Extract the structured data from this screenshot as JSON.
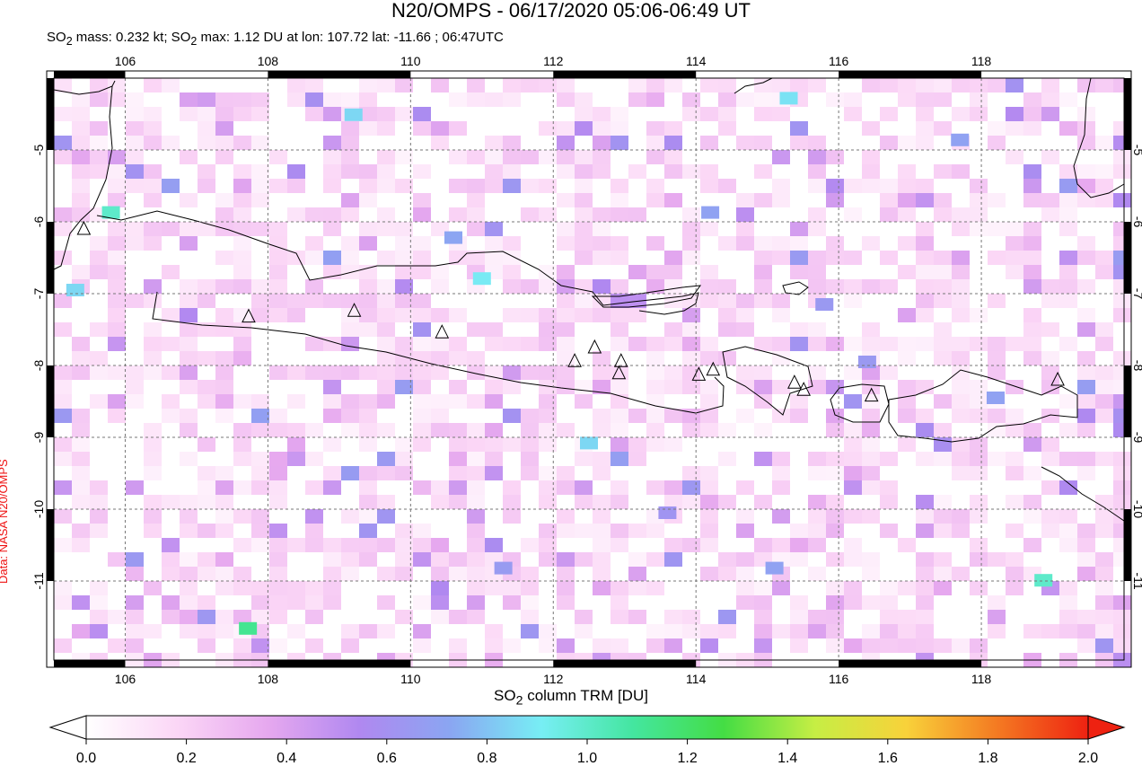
{
  "title": "N20/OMPS - 06/17/2020 05:06-06:49 UT",
  "subtitle": {
    "pre1": "SO",
    "sub1": "2",
    "mid1": " mass: 0.232 kt; SO",
    "sub2": "2",
    "rest": " max: 1.12 DU at lon: 107.72 lat: -11.66 ; 06:47UTC"
  },
  "credit": "Data: NASA N20/OMPS",
  "colorbar": {
    "label_pre": "SO",
    "label_sub": "2",
    "label_post": " column TRM [DU]",
    "ticks": [
      "0.0",
      "0.2",
      "0.4",
      "0.6",
      "0.8",
      "1.0",
      "1.2",
      "1.4",
      "1.6",
      "1.8",
      "2.0"
    ],
    "min": 0.0,
    "max": 2.0,
    "colors": [
      "#ffffff",
      "#fbd6f6",
      "#e6a8ef",
      "#b088f0",
      "#8aa6f2",
      "#77eef4",
      "#44e6a0",
      "#44dd44",
      "#c6ee44",
      "#f8d23a",
      "#f47a22",
      "#ee2211"
    ]
  },
  "chart_data": {
    "type": "heatmap",
    "title": "N20/OMPS - 06/17/2020 05:06-06:49 UT",
    "xlim": [
      105.0,
      120.0
    ],
    "ylim": [
      -12.1,
      -4.0
    ],
    "x_ticks": [
      "106",
      "108",
      "110",
      "112",
      "114",
      "116",
      "118"
    ],
    "y_ticks": [
      "-5",
      "-6",
      "-7",
      "-8",
      "-9",
      "-10",
      "-11"
    ],
    "x_tick_values": [
      106,
      108,
      110,
      112,
      114,
      116,
      118
    ],
    "y_tick_values": [
      -5,
      -6,
      -7,
      -8,
      -9,
      -10,
      -11
    ],
    "grid": true,
    "volcanoes": [
      {
        "lon": 105.42,
        "lat": -6.1
      },
      {
        "lon": 107.73,
        "lat": -7.32
      },
      {
        "lon": 109.21,
        "lat": -7.24
      },
      {
        "lon": 110.44,
        "lat": -7.54
      },
      {
        "lon": 112.3,
        "lat": -7.94
      },
      {
        "lon": 112.58,
        "lat": -7.75
      },
      {
        "lon": 112.95,
        "lat": -7.94
      },
      {
        "lon": 112.92,
        "lat": -8.11
      },
      {
        "lon": 114.04,
        "lat": -8.13
      },
      {
        "lon": 114.24,
        "lat": -8.06
      },
      {
        "lon": 115.38,
        "lat": -8.24
      },
      {
        "lon": 115.51,
        "lat": -8.34
      },
      {
        "lon": 116.46,
        "lat": -8.42
      },
      {
        "lon": 119.07,
        "lat": -8.2
      }
    ],
    "notable_pixels": [
      {
        "lon": 107.72,
        "lat": -11.66,
        "value": 1.12
      },
      {
        "lon": 105.8,
        "lat": -5.87,
        "value": 1.0
      },
      {
        "lon": 118.87,
        "lat": -10.99,
        "value": 1.0
      },
      {
        "lon": 112.5,
        "lat": -9.08,
        "value": 0.85
      },
      {
        "lon": 111.0,
        "lat": -6.79,
        "value": 0.9
      },
      {
        "lon": 109.2,
        "lat": -4.51,
        "value": 0.85
      },
      {
        "lon": 115.3,
        "lat": -4.28,
        "value": 0.88
      },
      {
        "lon": 117.7,
        "lat": -4.86,
        "value": 0.7
      },
      {
        "lon": 110.6,
        "lat": -6.22,
        "value": 0.72
      },
      {
        "lon": 113.6,
        "lat": -10.05,
        "value": 0.62
      },
      {
        "lon": 115.1,
        "lat": -10.82,
        "value": 0.7
      },
      {
        "lon": 111.3,
        "lat": -10.82,
        "value": 0.66
      },
      {
        "lon": 114.2,
        "lat": -5.87,
        "value": 0.7
      },
      {
        "lon": 105.3,
        "lat": -6.95,
        "value": 0.85
      },
      {
        "lon": 115.8,
        "lat": -7.15,
        "value": 0.65
      },
      {
        "lon": 116.4,
        "lat": -7.95,
        "value": 0.65
      },
      {
        "lon": 118.2,
        "lat": -8.45,
        "value": 0.7
      }
    ]
  }
}
